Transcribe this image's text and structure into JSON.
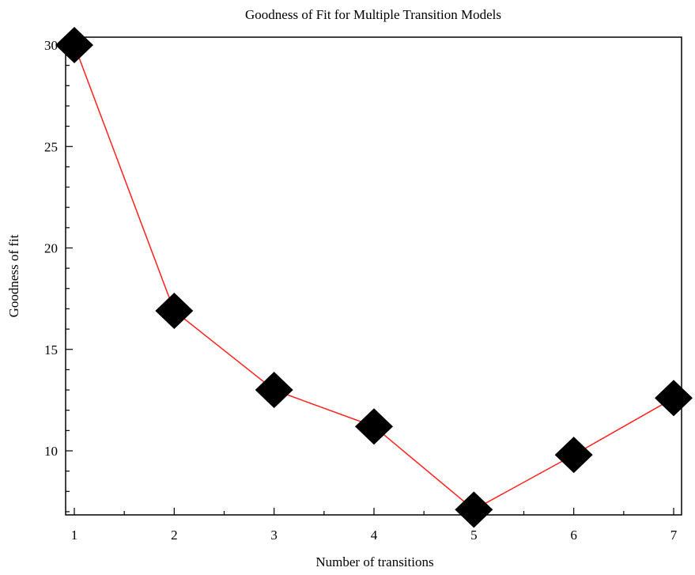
{
  "chart_data": {
    "type": "line",
    "title": "Goodness of Fit for Multiple Transition Models",
    "xlabel": "Number of transitions",
    "ylabel": "Goodness of fit",
    "x": [
      1,
      2,
      3,
      4,
      5,
      6,
      7
    ],
    "series": [
      {
        "values": [
          30,
          16.9,
          13,
          11.2,
          7.1,
          9.8,
          12.6
        ]
      }
    ],
    "xlim": [
      0.95,
      7.05
    ],
    "ylim": [
      6.9,
      30.5
    ],
    "xticks": [
      1,
      2,
      3,
      4,
      5,
      6,
      7
    ],
    "yticks": [
      10,
      15,
      20,
      25,
      30
    ],
    "grid": false,
    "legend": "none",
    "line_color": "#ff2020",
    "marker": "diamond",
    "marker_color": "#000000"
  }
}
